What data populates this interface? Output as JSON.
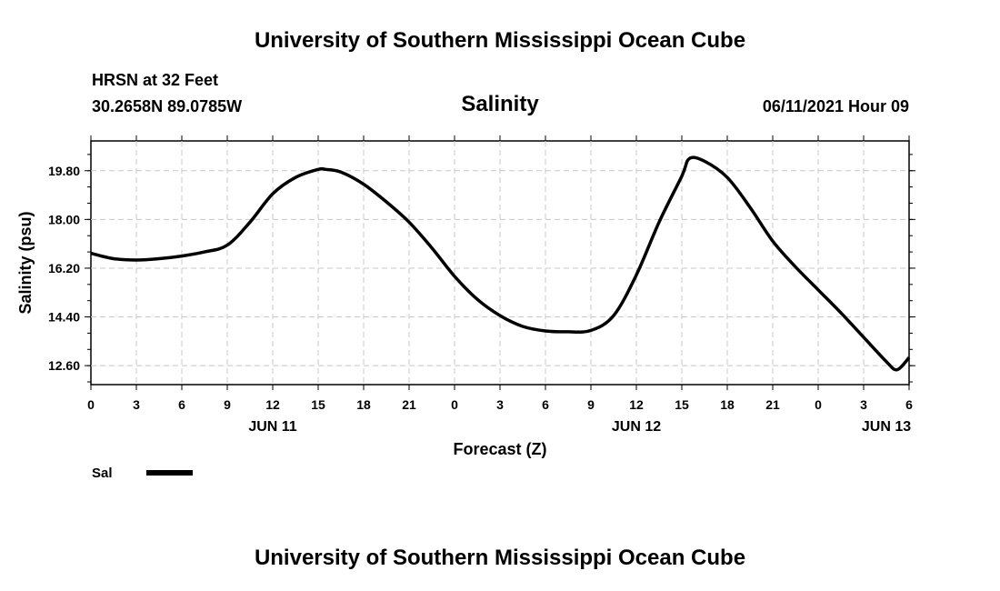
{
  "header": {
    "top_title": "University of Southern Mississippi Ocean Cube",
    "bottom_title": "University of Southern Mississippi Ocean Cube",
    "station": "HRSN at 32 Feet",
    "coords": "30.2658N  89.0785W",
    "datetime": "06/11/2021 Hour 09"
  },
  "chart_data": {
    "type": "line",
    "title": "Salinity",
    "xlabel": "Forecast (Z)",
    "ylabel": "Salinity (psu)",
    "ylim": [
      11.9,
      20.9
    ],
    "xlim": [
      0,
      54
    ],
    "yticks": [
      "12.60",
      "14.40",
      "16.20",
      "18.00",
      "19.80"
    ],
    "ytick_values": [
      12.6,
      14.4,
      16.2,
      18.0,
      19.8
    ],
    "xticks": [
      "0",
      "3",
      "6",
      "9",
      "12",
      "15",
      "18",
      "21",
      "0",
      "3",
      "6",
      "9",
      "12",
      "15",
      "18",
      "21",
      "0",
      "3",
      "6"
    ],
    "day_labels": [
      {
        "label": "JUN 11",
        "hour": 12
      },
      {
        "label": "JUN 12",
        "hour": 36
      },
      {
        "label": "JUN 13",
        "hour": 52.5
      }
    ],
    "grid": true,
    "legend": [
      {
        "name": "Sal",
        "position": "bottom-left"
      }
    ],
    "series": [
      {
        "name": "Sal",
        "x": [
          0,
          1.5,
          3,
          4.5,
          6,
          7.5,
          9,
          10.5,
          12,
          13.5,
          15,
          15.5,
          16.5,
          18,
          19.5,
          21,
          22.5,
          24,
          25.5,
          27,
          28.5,
          30,
          31.5,
          33,
          34.5,
          36,
          37.5,
          39,
          39.5,
          40.5,
          42,
          43.5,
          45,
          46.5,
          48,
          49.5,
          51,
          52.5,
          53.2,
          54
        ],
        "values": [
          16.75,
          16.55,
          16.5,
          16.55,
          16.65,
          16.8,
          17.05,
          17.9,
          18.95,
          19.55,
          19.85,
          19.85,
          19.75,
          19.3,
          18.65,
          17.9,
          16.95,
          15.9,
          15.05,
          14.45,
          14.05,
          13.88,
          13.85,
          13.9,
          14.45,
          15.95,
          17.9,
          19.6,
          20.25,
          20.15,
          19.55,
          18.45,
          17.2,
          16.25,
          15.4,
          14.55,
          13.65,
          12.75,
          12.45,
          12.9
        ]
      }
    ]
  }
}
